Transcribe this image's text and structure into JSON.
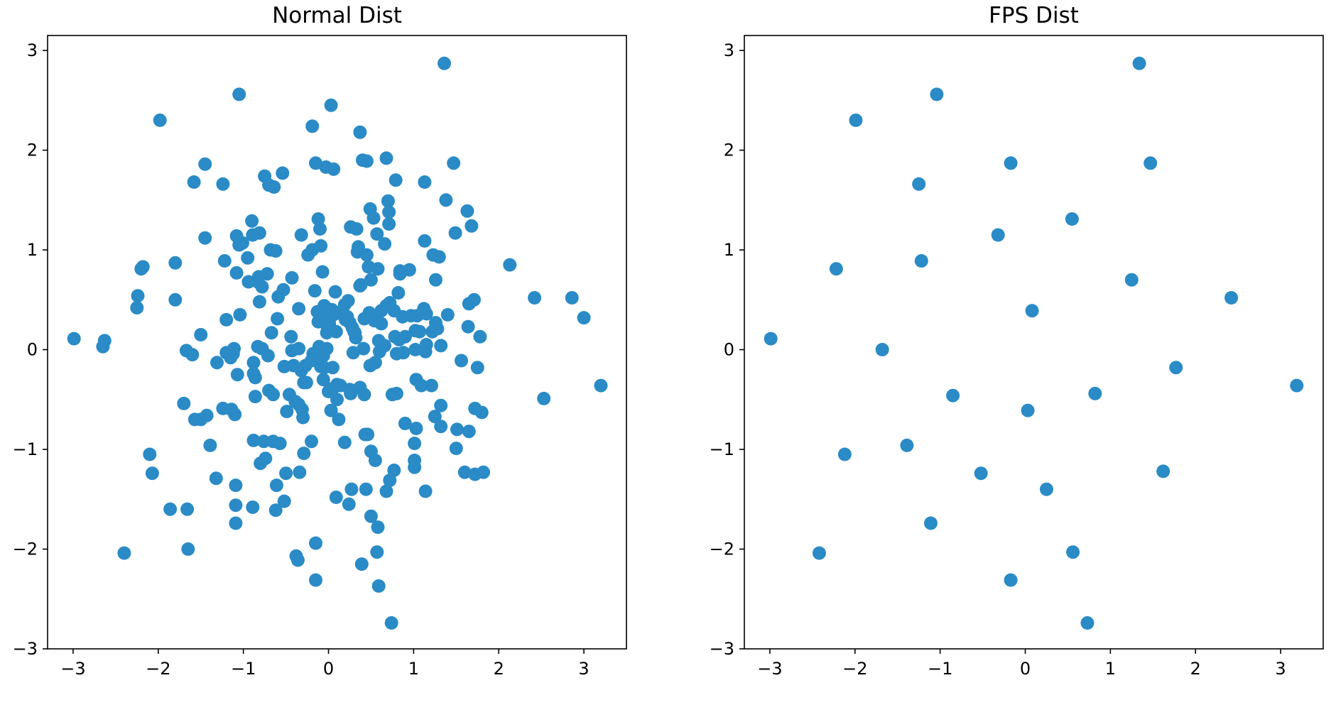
{
  "chart_data": [
    {
      "type": "scatter",
      "title": "Normal Dist",
      "xlim": [
        -3.3,
        3.5
      ],
      "ylim": [
        -3.0,
        3.15
      ],
      "xticks": [
        -3,
        -2,
        -1,
        0,
        1,
        2,
        3
      ],
      "yticks": [
        -3,
        -2,
        -1,
        0,
        1,
        2,
        3
      ],
      "grid": false,
      "legend": "none",
      "color": "#2a8bc6",
      "points": [
        [
          -2.99,
          0.11
        ],
        [
          -2.65,
          0.03
        ],
        [
          -2.63,
          0.09
        ],
        [
          -2.4,
          -2.04
        ],
        [
          -2.25,
          0.42
        ],
        [
          -2.24,
          0.54
        ],
        [
          -2.2,
          0.81
        ],
        [
          -2.18,
          0.83
        ],
        [
          -2.1,
          -1.05
        ],
        [
          -2.07,
          -1.24
        ],
        [
          -1.98,
          2.3
        ],
        [
          -1.86,
          -1.6
        ],
        [
          -1.8,
          0.87
        ],
        [
          -1.8,
          0.5
        ],
        [
          -1.7,
          -0.54
        ],
        [
          -1.67,
          -0.01
        ],
        [
          -1.66,
          -1.6
        ],
        [
          -1.65,
          -2.0
        ],
        [
          -1.6,
          -0.05
        ],
        [
          -1.58,
          1.68
        ],
        [
          -1.57,
          -0.7
        ],
        [
          -1.5,
          0.15
        ],
        [
          -1.5,
          -0.7
        ],
        [
          -1.45,
          1.12
        ],
        [
          -1.45,
          1.86
        ],
        [
          -1.43,
          -0.66
        ],
        [
          -1.39,
          -0.96
        ],
        [
          -1.32,
          -1.29
        ],
        [
          -1.31,
          -0.13
        ],
        [
          -1.24,
          1.66
        ],
        [
          -1.24,
          -0.59
        ],
        [
          -1.22,
          0.89
        ],
        [
          -1.2,
          0.3
        ],
        [
          -1.2,
          -0.03
        ],
        [
          -1.15,
          -0.08
        ],
        [
          -1.14,
          -0.6
        ],
        [
          -1.12,
          -0.04
        ],
        [
          -1.11,
          0.01
        ],
        [
          -1.1,
          -0.65
        ],
        [
          -1.09,
          -1.36
        ],
        [
          -1.09,
          -1.56
        ],
        [
          -1.09,
          -1.74
        ],
        [
          -1.08,
          1.14
        ],
        [
          -1.08,
          0.77
        ],
        [
          -1.07,
          -0.25
        ],
        [
          -1.05,
          1.05
        ],
        [
          -1.05,
          2.56
        ],
        [
          -1.04,
          0.35
        ],
        [
          -1.01,
          1.07
        ],
        [
          -0.95,
          0.92
        ],
        [
          -0.94,
          0.68
        ],
        [
          -0.9,
          1.29
        ],
        [
          -0.89,
          1.15
        ],
        [
          -0.89,
          -1.58
        ],
        [
          -0.88,
          -0.13
        ],
        [
          -0.88,
          -0.24
        ],
        [
          -0.88,
          -0.91
        ],
        [
          -0.86,
          -0.28
        ],
        [
          -0.86,
          -0.47
        ],
        [
          -0.83,
          0.03
        ],
        [
          -0.83,
          0.68
        ],
        [
          -0.82,
          0.73
        ],
        [
          -0.81,
          1.17
        ],
        [
          -0.81,
          0.48
        ],
        [
          -0.8,
          -1.14
        ],
        [
          -0.78,
          0.01
        ],
        [
          -0.78,
          0.63
        ],
        [
          -0.76,
          -0.92
        ],
        [
          -0.75,
          1.74
        ],
        [
          -0.74,
          -1.09
        ],
        [
          -0.72,
          0.76
        ],
        [
          -0.71,
          -0.06
        ],
        [
          -0.7,
          1.65
        ],
        [
          -0.7,
          -0.41
        ],
        [
          -0.68,
          1.0
        ],
        [
          -0.67,
          0.17
        ],
        [
          -0.65,
          -0.45
        ],
        [
          -0.65,
          -0.92
        ],
        [
          -0.64,
          1.63
        ],
        [
          -0.62,
          0.99
        ],
        [
          -0.62,
          -1.61
        ],
        [
          -0.61,
          -1.36
        ],
        [
          -0.6,
          0.31
        ],
        [
          -0.59,
          0.53
        ],
        [
          -0.57,
          -0.94
        ],
        [
          -0.54,
          1.77
        ],
        [
          -0.53,
          0.6
        ],
        [
          -0.52,
          -1.52
        ],
        [
          -0.52,
          -0.17
        ],
        [
          -0.5,
          -1.24
        ],
        [
          -0.49,
          -0.62
        ],
        [
          -0.46,
          -0.45
        ],
        [
          -0.44,
          0.13
        ],
        [
          -0.43,
          0.72
        ],
        [
          -0.43,
          -0.01
        ],
        [
          -0.41,
          -0.16
        ],
        [
          -0.39,
          -0.52
        ],
        [
          -0.38,
          -2.07
        ],
        [
          -0.36,
          -2.11
        ],
        [
          -0.35,
          0.41
        ],
        [
          -0.35,
          0.01
        ],
        [
          -0.35,
          -0.55
        ],
        [
          -0.34,
          -1.23
        ],
        [
          -0.32,
          1.15
        ],
        [
          -0.32,
          -0.21
        ],
        [
          -0.31,
          -0.6
        ],
        [
          -0.3,
          -0.68
        ],
        [
          -0.29,
          -0.33
        ],
        [
          -0.29,
          -1.04
        ],
        [
          -0.27,
          -0.16
        ],
        [
          -0.26,
          -0.33
        ],
        [
          -0.24,
          0.95
        ],
        [
          -0.2,
          -0.92
        ],
        [
          -0.2,
          -0.11
        ],
        [
          -0.19,
          1.0
        ],
        [
          -0.19,
          2.24
        ],
        [
          -0.18,
          -0.04
        ],
        [
          -0.16,
          0.59
        ],
        [
          -0.15,
          1.87
        ],
        [
          -0.15,
          -1.94
        ],
        [
          -0.15,
          -2.31
        ],
        [
          -0.13,
          0.38
        ],
        [
          -0.12,
          1.31
        ],
        [
          -0.12,
          0.28
        ],
        [
          -0.11,
          0.03
        ],
        [
          -0.1,
          1.21
        ],
        [
          -0.1,
          -0.01
        ],
        [
          -0.1,
          -0.11
        ],
        [
          -0.09,
          1.04
        ],
        [
          -0.09,
          -0.17
        ],
        [
          -0.07,
          0.78
        ],
        [
          -0.06,
          0.34
        ],
        [
          -0.06,
          -0.3
        ],
        [
          -0.06,
          -0.06
        ],
        [
          -0.05,
          0.44
        ],
        [
          -0.05,
          -0.18
        ],
        [
          -0.03,
          1.83
        ],
        [
          -0.02,
          0.17
        ],
        [
          -0.02,
          0.01
        ],
        [
          -0.01,
          0.22
        ],
        [
          0.0,
          -0.42
        ],
        [
          0.01,
          0.26
        ],
        [
          0.03,
          2.45
        ],
        [
          0.03,
          -0.61
        ],
        [
          0.04,
          0.4
        ],
        [
          0.04,
          0.34
        ],
        [
          0.05,
          -0.18
        ],
        [
          0.05,
          -0.39
        ],
        [
          0.06,
          1.81
        ],
        [
          0.08,
          0.58
        ],
        [
          0.08,
          0.36
        ],
        [
          0.09,
          0.18
        ],
        [
          0.09,
          -1.48
        ],
        [
          0.1,
          -0.35
        ],
        [
          0.1,
          -0.5
        ],
        [
          0.12,
          -0.7
        ],
        [
          0.14,
          -0.36
        ],
        [
          0.15,
          0.38
        ],
        [
          0.19,
          0.45
        ],
        [
          0.19,
          -0.93
        ],
        [
          0.2,
          0.3
        ],
        [
          0.22,
          0.33
        ],
        [
          0.23,
          0.49
        ],
        [
          0.24,
          -1.55
        ],
        [
          0.25,
          0.27
        ],
        [
          0.25,
          -0.4
        ],
        [
          0.26,
          1.23
        ],
        [
          0.26,
          -0.44
        ],
        [
          0.27,
          -1.4
        ],
        [
          0.28,
          0.22
        ],
        [
          0.29,
          -0.03
        ],
        [
          0.3,
          0.18
        ],
        [
          0.31,
          0.17
        ],
        [
          0.32,
          0.12
        ],
        [
          0.33,
          1.21
        ],
        [
          0.34,
          0.98
        ],
        [
          0.35,
          1.03
        ],
        [
          0.37,
          2.18
        ],
        [
          0.37,
          0.64
        ],
        [
          0.37,
          -0.38
        ],
        [
          0.38,
          0.65
        ],
        [
          0.39,
          -2.15
        ],
        [
          0.4,
          1.9
        ],
        [
          0.41,
          0.01
        ],
        [
          0.42,
          0.31
        ],
        [
          0.42,
          -0.45
        ],
        [
          0.43,
          -0.85
        ],
        [
          0.44,
          -1.4
        ],
        [
          0.45,
          1.89
        ],
        [
          0.45,
          0.95
        ],
        [
          0.46,
          -0.85
        ],
        [
          0.47,
          0.83
        ],
        [
          0.48,
          0.37
        ],
        [
          0.49,
          1.41
        ],
        [
          0.49,
          -0.16
        ],
        [
          0.5,
          0.7
        ],
        [
          0.5,
          -1.02
        ],
        [
          0.5,
          -1.67
        ],
        [
          0.53,
          1.32
        ],
        [
          0.54,
          0.29
        ],
        [
          0.55,
          -0.13
        ],
        [
          0.55,
          -1.11
        ],
        [
          0.57,
          1.16
        ],
        [
          0.57,
          -2.03
        ],
        [
          0.58,
          0.81
        ],
        [
          0.58,
          0.29
        ],
        [
          0.58,
          -1.78
        ],
        [
          0.59,
          0.09
        ],
        [
          0.59,
          -2.37
        ],
        [
          0.6,
          -0.02
        ],
        [
          0.62,
          0.39
        ],
        [
          0.62,
          0.26
        ],
        [
          0.66,
          1.06
        ],
        [
          0.66,
          0.04
        ],
        [
          0.68,
          1.92
        ],
        [
          0.68,
          0.44
        ],
        [
          0.68,
          -1.42
        ],
        [
          0.7,
          1.49
        ],
        [
          0.71,
          1.38
        ],
        [
          0.71,
          1.26
        ],
        [
          0.72,
          0.47
        ],
        [
          0.72,
          -1.31
        ],
        [
          0.74,
          -2.74
        ],
        [
          0.75,
          -0.45
        ],
        [
          0.77,
          -1.21
        ],
        [
          0.77,
          0.39
        ],
        [
          0.78,
          0.13
        ],
        [
          0.79,
          1.7
        ],
        [
          0.8,
          -0.04
        ],
        [
          0.8,
          -0.44
        ],
        [
          0.82,
          0.57
        ],
        [
          0.83,
          0.1
        ],
        [
          0.84,
          0.79
        ],
        [
          0.84,
          0.76
        ],
        [
          0.87,
          0.33
        ],
        [
          0.88,
          -0.03
        ],
        [
          0.9,
          -0.74
        ],
        [
          0.9,
          0.13
        ],
        [
          0.95,
          0.8
        ],
        [
          0.97,
          0.34
        ],
        [
          1.01,
          -0.94
        ],
        [
          1.01,
          -1.18
        ],
        [
          1.01,
          -1.11
        ],
        [
          1.02,
          0.19
        ],
        [
          1.02,
          0.0
        ],
        [
          1.03,
          -0.79
        ],
        [
          1.03,
          -0.3
        ],
        [
          1.04,
          0.34
        ],
        [
          1.07,
          0.18
        ],
        [
          1.09,
          -0.36
        ],
        [
          1.12,
          0.41
        ],
        [
          1.13,
          1.09
        ],
        [
          1.13,
          1.68
        ],
        [
          1.14,
          -0.02
        ],
        [
          1.14,
          -1.42
        ],
        [
          1.15,
          0.05
        ],
        [
          1.15,
          0.36
        ],
        [
          1.21,
          -0.36
        ],
        [
          1.22,
          0.18
        ],
        [
          1.23,
          0.95
        ],
        [
          1.25,
          -0.67
        ],
        [
          1.26,
          0.7
        ],
        [
          1.26,
          0.27
        ],
        [
          1.28,
          0.21
        ],
        [
          1.3,
          0.93
        ],
        [
          1.32,
          -0.77
        ],
        [
          1.32,
          -0.56
        ],
        [
          1.32,
          0.04
        ],
        [
          1.36,
          2.87
        ],
        [
          1.38,
          1.5
        ],
        [
          1.4,
          0.35
        ],
        [
          1.47,
          1.87
        ],
        [
          1.49,
          1.17
        ],
        [
          1.5,
          -0.99
        ],
        [
          1.51,
          -0.8
        ],
        [
          1.56,
          -0.11
        ],
        [
          1.6,
          -1.23
        ],
        [
          1.63,
          1.39
        ],
        [
          1.64,
          0.23
        ],
        [
          1.65,
          0.46
        ],
        [
          1.65,
          -0.82
        ],
        [
          1.68,
          1.24
        ],
        [
          1.71,
          0.5
        ],
        [
          1.72,
          -0.59
        ],
        [
          1.72,
          -1.25
        ],
        [
          1.75,
          -0.18
        ],
        [
          1.78,
          0.13
        ],
        [
          1.8,
          -0.63
        ],
        [
          1.82,
          -1.23
        ],
        [
          2.13,
          0.85
        ],
        [
          2.42,
          0.52
        ],
        [
          2.53,
          -0.49
        ],
        [
          2.86,
          0.52
        ],
        [
          3.0,
          0.32
        ],
        [
          3.2,
          -0.36
        ]
      ]
    },
    {
      "type": "scatter",
      "title": "FPS Dist",
      "xlim": [
        -3.3,
        3.5
      ],
      "ylim": [
        -3.0,
        3.15
      ],
      "xticks": [
        -3,
        -2,
        -1,
        0,
        1,
        2,
        3
      ],
      "yticks": [
        -3,
        -2,
        -1,
        0,
        1,
        2,
        3
      ],
      "grid": false,
      "legend": "none",
      "color": "#2a8bc6",
      "points": [
        [
          1.34,
          2.87
        ],
        [
          -1.04,
          2.56
        ],
        [
          -1.99,
          2.3
        ],
        [
          -0.17,
          1.87
        ],
        [
          1.47,
          1.87
        ],
        [
          -1.25,
          1.66
        ],
        [
          0.55,
          1.31
        ],
        [
          -0.32,
          1.15
        ],
        [
          -1.22,
          0.89
        ],
        [
          -2.22,
          0.81
        ],
        [
          1.25,
          0.7
        ],
        [
          2.42,
          0.52
        ],
        [
          0.08,
          0.39
        ],
        [
          -2.99,
          0.11
        ],
        [
          -1.68,
          0.0
        ],
        [
          1.77,
          -0.18
        ],
        [
          3.19,
          -0.36
        ],
        [
          -0.85,
          -0.46
        ],
        [
          0.82,
          -0.44
        ],
        [
          0.03,
          -0.61
        ],
        [
          -1.39,
          -0.96
        ],
        [
          -2.12,
          -1.05
        ],
        [
          -0.52,
          -1.24
        ],
        [
          1.62,
          -1.22
        ],
        [
          0.25,
          -1.4
        ],
        [
          -1.11,
          -1.74
        ],
        [
          -2.42,
          -2.04
        ],
        [
          0.56,
          -2.03
        ],
        [
          -0.17,
          -2.31
        ],
        [
          0.73,
          -2.74
        ]
      ]
    }
  ]
}
